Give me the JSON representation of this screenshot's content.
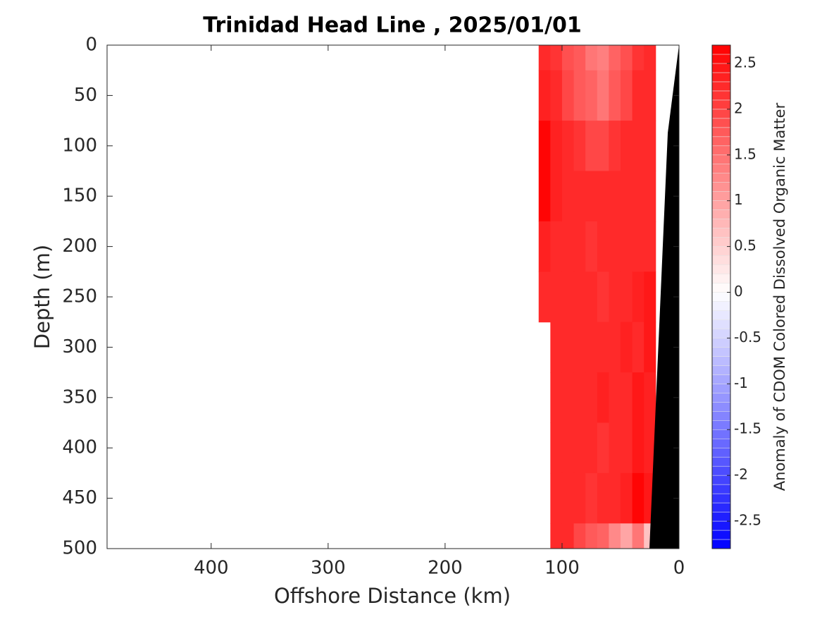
{
  "chart_data": {
    "type": "contour",
    "title": "Trinidad Head Line , 2025/01/01",
    "xlabel": "Offshore Distance (km)",
    "ylabel": "Depth (m)",
    "colorbar_label": "Anomaly of CDOM Colored Dissolved Organic Matter",
    "xlim": [
      489,
      0
    ],
    "xticks": [
      400,
      300,
      200,
      100,
      0
    ],
    "ylim": [
      500,
      0
    ],
    "yticks": [
      0,
      50,
      100,
      150,
      200,
      250,
      300,
      350,
      400,
      450,
      500
    ],
    "clim": [
      -2.8,
      2.7
    ],
    "cticks": [
      -2.5,
      -2,
      -1.5,
      -1,
      -0.5,
      0,
      0.5,
      1,
      1.5,
      2,
      2.5
    ],
    "colormap": [
      "#0000ff",
      "#ffffff",
      "#ff0000"
    ],
    "x": [
      115,
      105,
      95,
      85,
      75,
      65,
      55,
      45,
      35,
      25
    ],
    "y": [
      0,
      50,
      100,
      150,
      200,
      250,
      300,
      350,
      400,
      450,
      500
    ],
    "z": [
      [
        2.2,
        2.1,
        1.9,
        1.7,
        1.5,
        1.4,
        1.6,
        1.9,
        2.1,
        2.2
      ],
      [
        2.4,
        2.3,
        2.0,
        1.8,
        1.6,
        1.5,
        1.7,
        2.0,
        2.2,
        2.3
      ],
      [
        2.6,
        2.4,
        2.2,
        2.1,
        2.0,
        2.0,
        2.1,
        2.2,
        2.3,
        2.3
      ],
      [
        2.6,
        2.4,
        2.3,
        2.2,
        2.2,
        2.2,
        2.2,
        2.3,
        2.3,
        2.2
      ],
      [
        2.4,
        2.3,
        2.2,
        2.2,
        2.1,
        2.2,
        2.3,
        2.2,
        2.3,
        2.3
      ],
      [
        2.3,
        2.2,
        2.2,
        2.3,
        2.2,
        2.1,
        2.2,
        2.3,
        2.4,
        2.5
      ],
      [
        null,
        2.3,
        2.2,
        2.2,
        2.3,
        2.2,
        2.2,
        2.4,
        2.3,
        2.5
      ],
      [
        null,
        2.2,
        2.3,
        2.2,
        2.2,
        2.4,
        2.3,
        2.3,
        2.5,
        2.4
      ],
      [
        null,
        2.3,
        2.2,
        2.3,
        2.2,
        2.1,
        2.3,
        2.3,
        2.5,
        2.4
      ],
      [
        null,
        2.2,
        2.3,
        2.2,
        2.1,
        2.2,
        2.3,
        2.4,
        2.6,
        2.5
      ],
      [
        null,
        2.2,
        2.3,
        2.0,
        1.8,
        1.6,
        1.3,
        1.0,
        1.5,
        0.6
      ]
    ],
    "bathymetry": {
      "color": "#000000",
      "x": [
        0,
        9.6,
        25.3
      ],
      "y": [
        0,
        87,
        500
      ]
    }
  }
}
